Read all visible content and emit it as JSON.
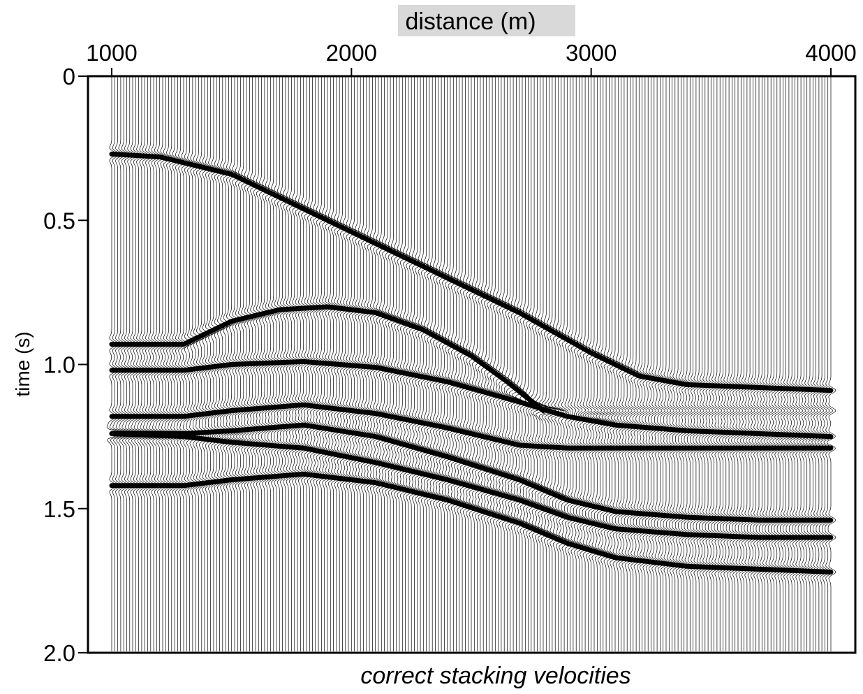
{
  "chart_data": {
    "type": "seismic wiggle section",
    "title": "",
    "xlabel": "distance (m)",
    "ylabel": "time (s)",
    "caption": "correct stacking velocities",
    "x_axis_position": "top",
    "y_axis_inverted": true,
    "xlim": [
      900,
      4100
    ],
    "ylim": [
      0,
      2.0
    ],
    "x_ticks": [
      1000,
      2000,
      3000,
      4000
    ],
    "x_tick_labels": [
      "1000",
      "2000",
      "3000",
      "4000"
    ],
    "y_ticks": [
      0,
      0.5,
      1.0,
      1.5,
      2.0
    ],
    "y_tick_labels": [
      "0",
      "0.5",
      "1.0",
      "1.5",
      "2.0"
    ],
    "trace_range_m": [
      1000,
      4000
    ],
    "trace_spacing_m": 12.5,
    "grid": false,
    "legend": "none",
    "colors": {
      "trace": "#000000",
      "background": "#ffffff",
      "xlabel_highlight": "#d9d9d9"
    },
    "series": [
      {
        "x": [
          1000,
          1200,
          1500,
          1800,
          2100,
          2400,
          2700,
          3000,
          3200,
          3400,
          3700,
          4000
        ],
        "y": [
          0.27,
          0.28,
          0.34,
          0.46,
          0.58,
          0.7,
          0.82,
          0.96,
          1.04,
          1.07,
          1.08,
          1.09
        ]
      },
      {
        "x": [
          1000,
          1300,
          1500,
          1700,
          1900,
          2100,
          2300,
          2500,
          2650,
          2800
        ],
        "y": [
          0.93,
          0.93,
          0.85,
          0.81,
          0.8,
          0.82,
          0.88,
          0.97,
          1.06,
          1.16
        ]
      },
      {
        "x": [
          1000,
          1300,
          1500,
          1800,
          2100,
          2400,
          2700,
          2900,
          3100,
          3400,
          3700,
          4000
        ],
        "y": [
          1.02,
          1.02,
          1.0,
          0.99,
          1.01,
          1.06,
          1.13,
          1.18,
          1.21,
          1.23,
          1.24,
          1.25
        ]
      },
      {
        "x": [
          1000,
          1300,
          1500,
          1800,
          2100,
          2400,
          2700,
          2900,
          3100,
          3400,
          3700,
          4000
        ],
        "y": [
          1.18,
          1.18,
          1.16,
          1.14,
          1.17,
          1.22,
          1.28,
          1.29,
          1.29,
          1.29,
          1.29,
          1.29
        ]
      },
      {
        "x": [
          1000,
          1300,
          1500,
          1800,
          2100,
          2400,
          2700,
          2900,
          3100,
          3400,
          3700,
          4000
        ],
        "y": [
          1.24,
          1.24,
          1.23,
          1.21,
          1.25,
          1.32,
          1.4,
          1.47,
          1.51,
          1.53,
          1.54,
          1.54
        ]
      },
      {
        "x": [
          1000,
          1300,
          1500,
          1800,
          2100,
          2400,
          2700,
          2900,
          3100,
          3400,
          3700,
          4000
        ],
        "y": [
          1.24,
          1.25,
          1.27,
          1.29,
          1.34,
          1.4,
          1.47,
          1.53,
          1.57,
          1.59,
          1.6,
          1.6
        ]
      },
      {
        "x": [
          1000,
          1300,
          1500,
          1800,
          2100,
          2400,
          2700,
          2900,
          3100,
          3400,
          3700,
          4000
        ],
        "y": [
          1.42,
          1.42,
          1.4,
          1.38,
          1.41,
          1.47,
          1.55,
          1.62,
          1.67,
          1.7,
          1.71,
          1.72
        ]
      }
    ]
  }
}
